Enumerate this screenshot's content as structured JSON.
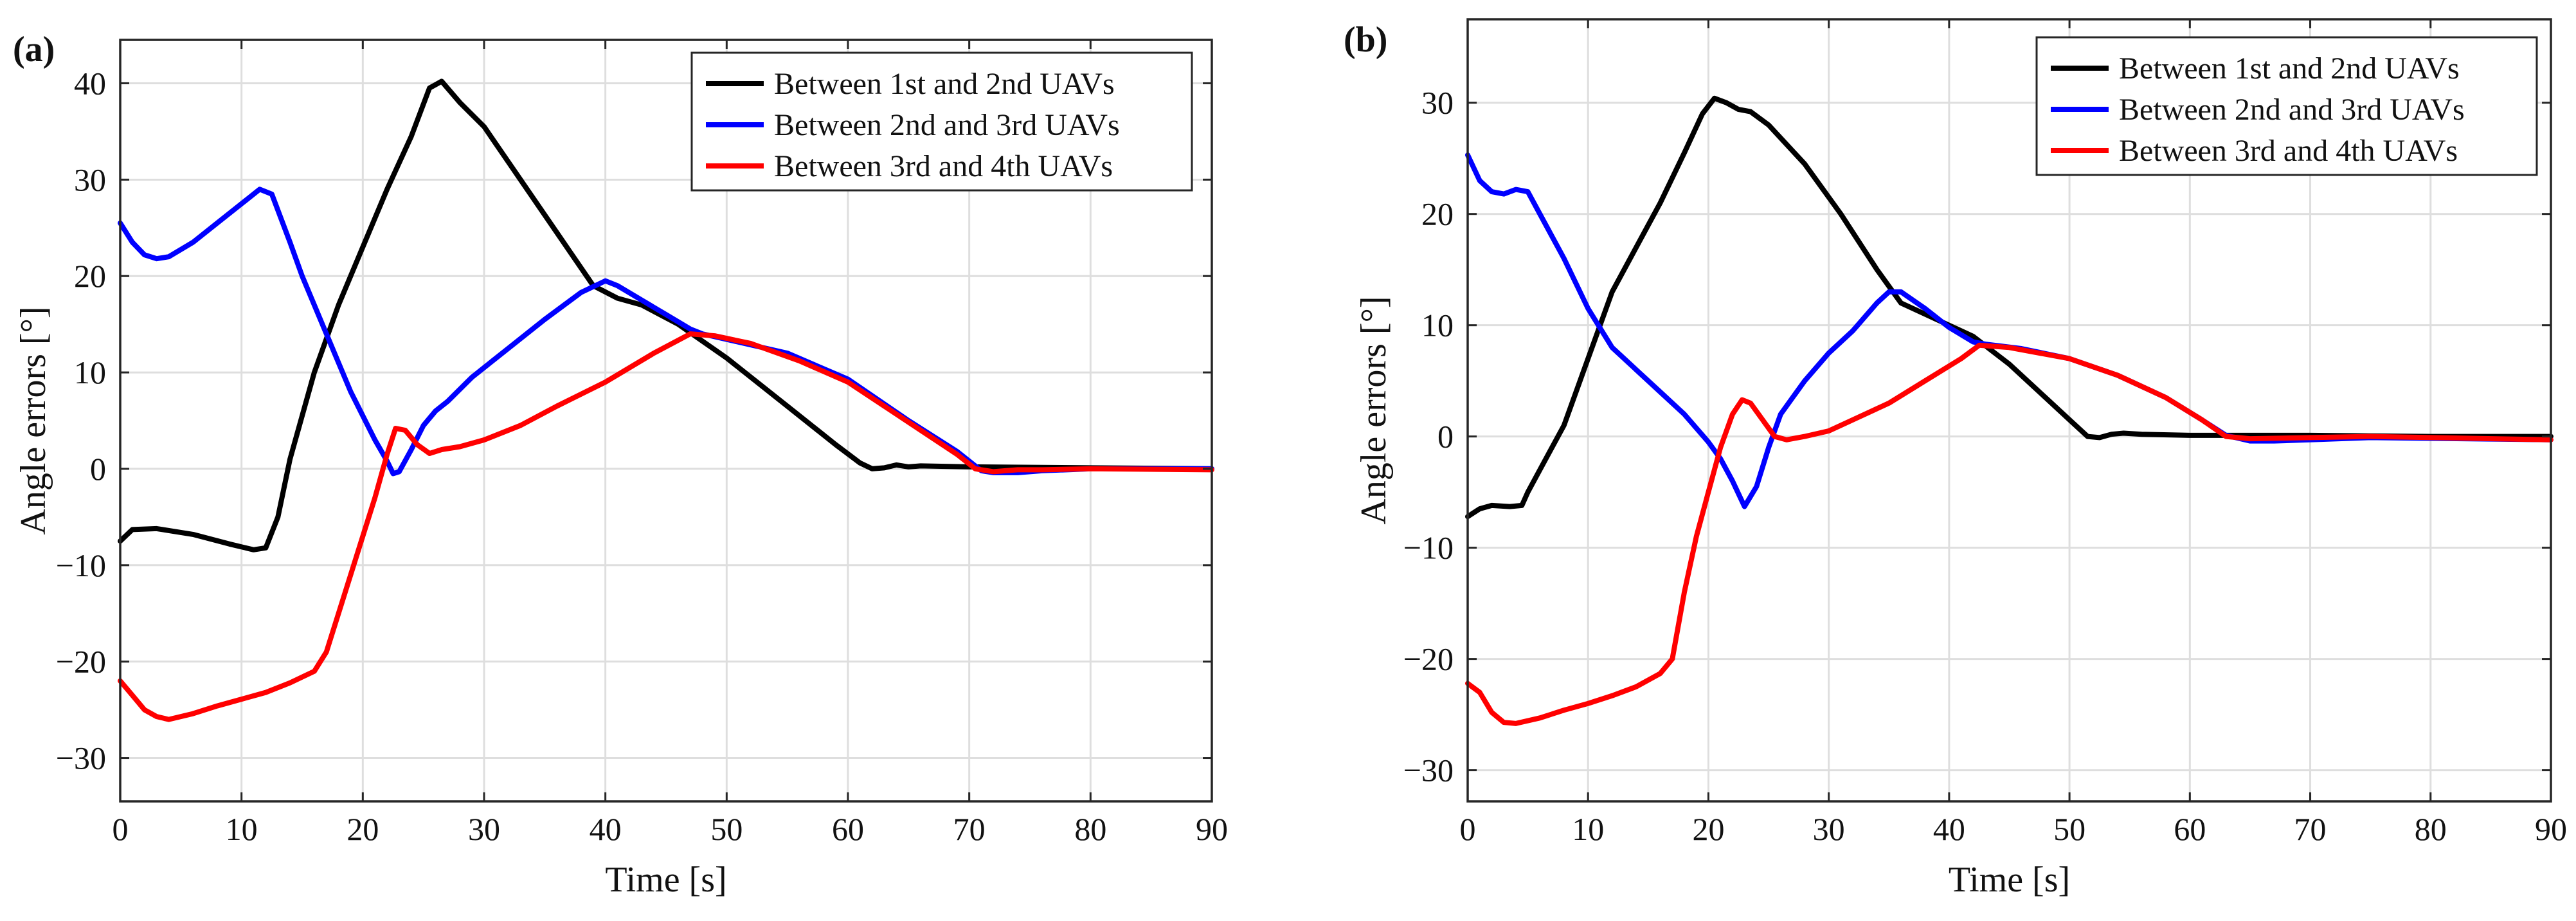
{
  "chart_data": [
    {
      "type": "line",
      "panel_label": "(a)",
      "xlabel": "Time [s]",
      "ylabel": "Angle errors [°]",
      "xlim": [
        0,
        90
      ],
      "ylim": [
        -34.5,
        44.5
      ],
      "xticks": [
        0,
        10,
        20,
        30,
        40,
        50,
        60,
        70,
        80,
        90
      ],
      "yticks": [
        -30,
        -20,
        -10,
        0,
        10,
        20,
        30,
        40
      ],
      "grid": true,
      "legend_position": "top-right",
      "series": [
        {
          "name": "Between 1st and 2nd UAVs",
          "color": "#000000",
          "points": [
            [
              0,
              -7.5
            ],
            [
              1,
              -6.3
            ],
            [
              3,
              -6.2
            ],
            [
              6,
              -6.8
            ],
            [
              9,
              -7.8
            ],
            [
              11,
              -8.4
            ],
            [
              12,
              -8.2
            ],
            [
              13,
              -5
            ],
            [
              14,
              1
            ],
            [
              16,
              10
            ],
            [
              18,
              17
            ],
            [
              20,
              23
            ],
            [
              22,
              29
            ],
            [
              24,
              34.5
            ],
            [
              25.5,
              39.5
            ],
            [
              26.5,
              40.2
            ],
            [
              28,
              38
            ],
            [
              30,
              35.5
            ],
            [
              33,
              30
            ],
            [
              36,
              24.5
            ],
            [
              39,
              19
            ],
            [
              41,
              17.7
            ],
            [
              43,
              17
            ],
            [
              46,
              15
            ],
            [
              50,
              11.5
            ],
            [
              55,
              6.5
            ],
            [
              59,
              2.5
            ],
            [
              61,
              0.6
            ],
            [
              62,
              0
            ],
            [
              63,
              0.1
            ],
            [
              64,
              0.4
            ],
            [
              65,
              0.2
            ],
            [
              66,
              0.3
            ],
            [
              70,
              0.2
            ],
            [
              80,
              0.1
            ],
            [
              90,
              0
            ]
          ]
        },
        {
          "name": "Between 2nd and 3rd UAVs",
          "color": "#0000ff",
          "points": [
            [
              0,
              25.5
            ],
            [
              1,
              23.5
            ],
            [
              2,
              22.2
            ],
            [
              3,
              21.8
            ],
            [
              4,
              22
            ],
            [
              6,
              23.5
            ],
            [
              8,
              25.5
            ],
            [
              10,
              27.5
            ],
            [
              11.5,
              29
            ],
            [
              12.5,
              28.5
            ],
            [
              14,
              23.5
            ],
            [
              15,
              20
            ],
            [
              17,
              14
            ],
            [
              19,
              8
            ],
            [
              21,
              3
            ],
            [
              22,
              0.8
            ],
            [
              22.5,
              -0.5
            ],
            [
              23,
              -0.3
            ],
            [
              24,
              2
            ],
            [
              25,
              4.5
            ],
            [
              26,
              6
            ],
            [
              27,
              7
            ],
            [
              29,
              9.5
            ],
            [
              32,
              12.5
            ],
            [
              35,
              15.5
            ],
            [
              38,
              18.3
            ],
            [
              40,
              19.5
            ],
            [
              41,
              19
            ],
            [
              43,
              17.5
            ],
            [
              45,
              16
            ],
            [
              47,
              14.5
            ],
            [
              48,
              14
            ],
            [
              55,
              12
            ],
            [
              60,
              9.3
            ],
            [
              65,
              5
            ],
            [
              69,
              1.8
            ],
            [
              71,
              -0.2
            ],
            [
              72,
              -0.4
            ],
            [
              74,
              -0.4
            ],
            [
              76,
              -0.2
            ],
            [
              80,
              0
            ],
            [
              90,
              0
            ]
          ]
        },
        {
          "name": "Between 3rd and 4th UAVs",
          "color": "#ff0000",
          "points": [
            [
              0,
              -22
            ],
            [
              1,
              -23.5
            ],
            [
              2,
              -25
            ],
            [
              3,
              -25.7
            ],
            [
              4,
              -26
            ],
            [
              6,
              -25.4
            ],
            [
              8,
              -24.6
            ],
            [
              10,
              -23.9
            ],
            [
              12,
              -23.2
            ],
            [
              14,
              -22.2
            ],
            [
              16,
              -21
            ],
            [
              17,
              -19
            ],
            [
              18,
              -15
            ],
            [
              20,
              -7
            ],
            [
              21,
              -3
            ],
            [
              22,
              1.5
            ],
            [
              22.7,
              4.2
            ],
            [
              23.5,
              4
            ],
            [
              24.5,
              2.5
            ],
            [
              25.5,
              1.6
            ],
            [
              26.5,
              2
            ],
            [
              28,
              2.3
            ],
            [
              30,
              3
            ],
            [
              33,
              4.5
            ],
            [
              36,
              6.5
            ],
            [
              40,
              9
            ],
            [
              44,
              12
            ],
            [
              47,
              14
            ],
            [
              49,
              13.8
            ],
            [
              52,
              13
            ],
            [
              56,
              11.2
            ],
            [
              60,
              9
            ],
            [
              63,
              6.5
            ],
            [
              66,
              4
            ],
            [
              69,
              1.5
            ],
            [
              70.5,
              0
            ],
            [
              72,
              -0.3
            ],
            [
              74,
              -0.1
            ],
            [
              76,
              -0.1
            ],
            [
              80,
              0
            ],
            [
              90,
              -0.1
            ]
          ]
        }
      ]
    },
    {
      "type": "line",
      "panel_label": "(b)",
      "xlabel": "Time [s]",
      "ylabel": "Angle errors [°]",
      "xlim": [
        0,
        90
      ],
      "ylim": [
        -32.8,
        37.5
      ],
      "xticks": [
        0,
        10,
        20,
        30,
        40,
        50,
        60,
        70,
        80,
        90
      ],
      "yticks": [
        -30,
        -20,
        -10,
        0,
        10,
        20,
        30
      ],
      "grid": true,
      "legend_position": "top-right",
      "series": [
        {
          "name": "Between 1st and 2nd UAVs",
          "color": "#000000",
          "points": [
            [
              0,
              -7.2
            ],
            [
              1,
              -6.5
            ],
            [
              2,
              -6.2
            ],
            [
              3.5,
              -6.3
            ],
            [
              4.5,
              -6.2
            ],
            [
              5,
              -5
            ],
            [
              6,
              -3
            ],
            [
              8,
              1
            ],
            [
              10,
              7
            ],
            [
              12,
              13
            ],
            [
              14,
              17
            ],
            [
              16,
              21
            ],
            [
              18,
              25.5
            ],
            [
              19.5,
              29
            ],
            [
              20.5,
              30.4
            ],
            [
              21.5,
              30
            ],
            [
              22.5,
              29.4
            ],
            [
              23.5,
              29.2
            ],
            [
              25,
              28
            ],
            [
              28,
              24.5
            ],
            [
              31,
              20
            ],
            [
              34,
              15
            ],
            [
              36,
              12
            ],
            [
              38,
              11
            ],
            [
              40,
              10
            ],
            [
              42,
              9
            ],
            [
              45,
              6.5
            ],
            [
              48,
              3.5
            ],
            [
              50,
              1.5
            ],
            [
              51.5,
              0
            ],
            [
              52.5,
              -0.1
            ],
            [
              53.5,
              0.2
            ],
            [
              54.5,
              0.3
            ],
            [
              56,
              0.2
            ],
            [
              60,
              0.1
            ],
            [
              70,
              0.1
            ],
            [
              80,
              0
            ],
            [
              90,
              0
            ]
          ]
        },
        {
          "name": "Between 2nd and 3rd UAVs",
          "color": "#0000ff",
          "points": [
            [
              0,
              25.3
            ],
            [
              1,
              23
            ],
            [
              2,
              22
            ],
            [
              3,
              21.8
            ],
            [
              4,
              22.2
            ],
            [
              5,
              22
            ],
            [
              6,
              20
            ],
            [
              8,
              16
            ],
            [
              10,
              11.5
            ],
            [
              12,
              8
            ],
            [
              14,
              6
            ],
            [
              16,
              4
            ],
            [
              18,
              2
            ],
            [
              20,
              -0.5
            ],
            [
              21,
              -2
            ],
            [
              22,
              -4
            ],
            [
              23,
              -6.3
            ],
            [
              24,
              -4.5
            ],
            [
              25,
              -1
            ],
            [
              26,
              2
            ],
            [
              27,
              3.5
            ],
            [
              28,
              5
            ],
            [
              30,
              7.5
            ],
            [
              32,
              9.5
            ],
            [
              34,
              12
            ],
            [
              35,
              13
            ],
            [
              36,
              13
            ],
            [
              38,
              11.5
            ],
            [
              40,
              9.8
            ],
            [
              42,
              8.5
            ],
            [
              43,
              8.3
            ],
            [
              46,
              7.9
            ],
            [
              50,
              7
            ],
            [
              54,
              5.5
            ],
            [
              58,
              3.5
            ],
            [
              61,
              1.5
            ],
            [
              63,
              0.1
            ],
            [
              65,
              -0.4
            ],
            [
              67,
              -0.4
            ],
            [
              70,
              -0.3
            ],
            [
              75,
              -0.1
            ],
            [
              90,
              -0.3
            ]
          ]
        },
        {
          "name": "Between 3rd and 4th UAVs",
          "color": "#ff0000",
          "points": [
            [
              0,
              -22.2
            ],
            [
              1,
              -23
            ],
            [
              2,
              -24.8
            ],
            [
              3,
              -25.7
            ],
            [
              4,
              -25.8
            ],
            [
              6,
              -25.3
            ],
            [
              8,
              -24.6
            ],
            [
              10,
              -24
            ],
            [
              12,
              -23.3
            ],
            [
              14,
              -22.5
            ],
            [
              16,
              -21.3
            ],
            [
              17,
              -20
            ],
            [
              18,
              -14
            ],
            [
              19,
              -9
            ],
            [
              20,
              -5
            ],
            [
              21,
              -1
            ],
            [
              22,
              2
            ],
            [
              22.8,
              3.3
            ],
            [
              23.5,
              3
            ],
            [
              24.5,
              1.5
            ],
            [
              25.5,
              0
            ],
            [
              26.5,
              -0.3
            ],
            [
              28,
              0
            ],
            [
              30,
              0.5
            ],
            [
              32,
              1.5
            ],
            [
              35,
              3
            ],
            [
              38,
              5
            ],
            [
              41,
              7
            ],
            [
              42.5,
              8.2
            ],
            [
              45,
              8
            ],
            [
              50,
              7
            ],
            [
              54,
              5.5
            ],
            [
              58,
              3.5
            ],
            [
              61,
              1.5
            ],
            [
              63,
              0
            ],
            [
              65,
              -0.2
            ],
            [
              70,
              -0.1
            ],
            [
              75,
              0
            ],
            [
              90,
              -0.3
            ]
          ]
        }
      ]
    }
  ]
}
